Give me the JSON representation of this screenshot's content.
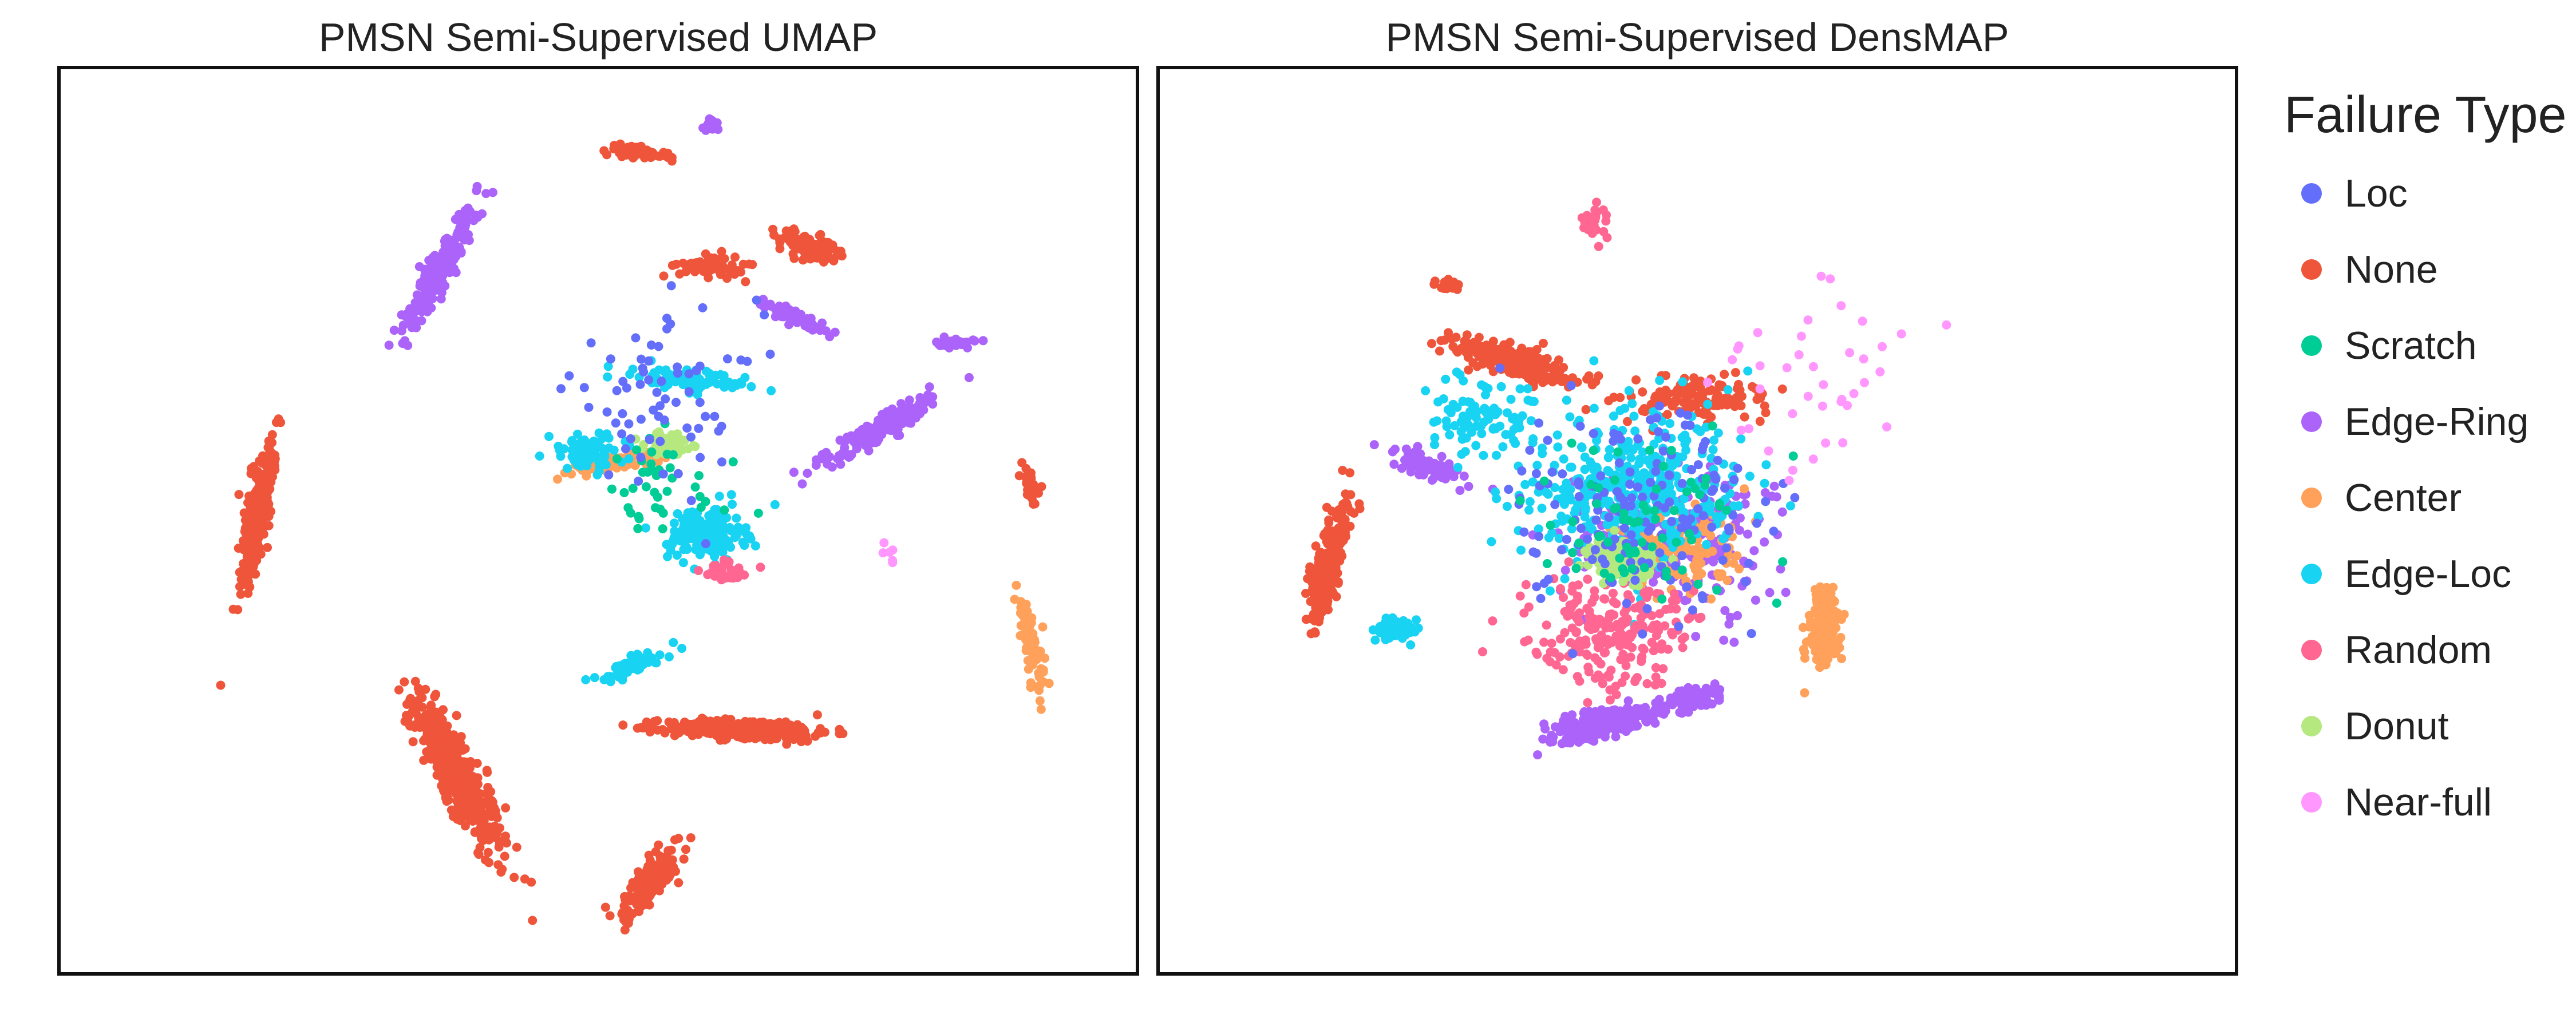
{
  "colors": {
    "Loc": "#636efa",
    "None": "#ef553b",
    "Scratch": "#00cc96",
    "Edge-Ring": "#ab63fa",
    "Center": "#ffa15a",
    "Edge-Loc": "#19d3f3",
    "Random": "#ff6692",
    "Donut": "#b6e880",
    "Near-full": "#ff97ff"
  },
  "legend": {
    "title": "Failure Type",
    "items": [
      "Loc",
      "None",
      "Scratch",
      "Edge-Ring",
      "Center",
      "Edge-Loc",
      "Random",
      "Donut",
      "Near-full"
    ]
  },
  "chart_data": [
    {
      "type": "scatter",
      "title": "PMSN Semi-Supervised UMAP",
      "xlabel": "",
      "ylabel": "",
      "xlim": [
        0,
        100
      ],
      "ylim": [
        0,
        100
      ],
      "grid": false,
      "legend_placement": "right",
      "clusters": [
        {
          "name": "None",
          "x": 18.5,
          "y": 50.5,
          "sx": 1.0,
          "sy": 9.0,
          "angle": -8,
          "n": 320
        },
        {
          "name": "None",
          "x": 37.0,
          "y": 22.0,
          "sx": 1.8,
          "sy": 9.0,
          "angle": 25,
          "n": 480
        },
        {
          "name": "None",
          "x": 64.0,
          "y": 27.0,
          "sx": 7.5,
          "sy": 1.1,
          "angle": -2,
          "n": 330
        },
        {
          "name": "None",
          "x": 55.0,
          "y": 10.5,
          "sx": 1.4,
          "sy": 4.5,
          "angle": -30,
          "n": 170
        },
        {
          "name": "None",
          "x": 53.5,
          "y": 90.5,
          "sx": 3.0,
          "sy": 0.6,
          "angle": -10,
          "n": 70
        },
        {
          "name": "None",
          "x": 69.5,
          "y": 80.0,
          "sx": 3.5,
          "sy": 1.4,
          "angle": -25,
          "n": 90
        },
        {
          "name": "None",
          "x": 60.5,
          "y": 78.0,
          "sx": 3.0,
          "sy": 1.2,
          "angle": 0,
          "n": 70
        },
        {
          "name": "None",
          "x": 90.0,
          "y": 53.5,
          "sx": 0.7,
          "sy": 2.5,
          "angle": 20,
          "n": 30
        },
        {
          "name": "Edge-Ring",
          "x": 35.5,
          "y": 78.0,
          "sx": 1.2,
          "sy": 7.5,
          "angle": -25,
          "n": 200
        },
        {
          "name": "Edge-Ring",
          "x": 76.0,
          "y": 60.0,
          "sx": 1.2,
          "sy": 7.0,
          "angle": -55,
          "n": 160
        },
        {
          "name": "Edge-Ring",
          "x": 83.0,
          "y": 69.5,
          "sx": 1.8,
          "sy": 0.5,
          "angle": 0,
          "n": 30
        },
        {
          "name": "Edge-Ring",
          "x": 60.5,
          "y": 93.5,
          "sx": 0.7,
          "sy": 0.8,
          "angle": 0,
          "n": 20
        },
        {
          "name": "Edge-Ring",
          "x": 68.0,
          "y": 72.5,
          "sx": 3.5,
          "sy": 0.7,
          "angle": -30,
          "n": 60
        },
        {
          "name": "Center",
          "x": 90.0,
          "y": 36.5,
          "sx": 1.0,
          "sy": 5.5,
          "angle": 10,
          "n": 90
        },
        {
          "name": "Center",
          "x": 52.0,
          "y": 56.5,
          "sx": 4.5,
          "sy": 0.8,
          "angle": 12,
          "n": 80
        },
        {
          "name": "Edge-Loc",
          "x": 60.0,
          "y": 48.5,
          "sx": 3.5,
          "sy": 3.0,
          "angle": 0,
          "n": 170
        },
        {
          "name": "Edge-Loc",
          "x": 53.0,
          "y": 34.0,
          "sx": 4.0,
          "sy": 1.0,
          "angle": 30,
          "n": 60
        },
        {
          "name": "Edge-Loc",
          "x": 58.5,
          "y": 65.5,
          "sx": 5.0,
          "sy": 1.2,
          "angle": -10,
          "n": 90
        },
        {
          "name": "Edge-Loc",
          "x": 49.0,
          "y": 57.5,
          "sx": 3.5,
          "sy": 2.0,
          "angle": 0,
          "n": 70
        },
        {
          "name": "Donut",
          "x": 56.5,
          "y": 58.5,
          "sx": 2.2,
          "sy": 1.2,
          "angle": 0,
          "n": 70
        },
        {
          "name": "Scratch",
          "x": 55.0,
          "y": 53.0,
          "sx": 8.0,
          "sy": 6.0,
          "angle": 0,
          "n": 40
        },
        {
          "name": "Random",
          "x": 62.0,
          "y": 44.5,
          "sx": 2.5,
          "sy": 1.5,
          "angle": 0,
          "n": 30
        },
        {
          "name": "Loc",
          "x": 56.0,
          "y": 63.0,
          "sx": 9.0,
          "sy": 10.0,
          "angle": 0,
          "n": 70
        },
        {
          "name": "Near-full",
          "x": 77.0,
          "y": 46.5,
          "sx": 1.0,
          "sy": 1.0,
          "angle": 0,
          "n": 6
        }
      ]
    },
    {
      "type": "scatter",
      "title": "PMSN Semi-Supervised DensMAP",
      "xlabel": "",
      "ylabel": "",
      "xlim": [
        0,
        100
      ],
      "ylim": [
        0,
        100
      ],
      "grid": false,
      "legend_placement": "right",
      "clusters": [
        {
          "name": "None",
          "x": 16.0,
          "y": 45.5,
          "sx": 1.4,
          "sy": 6.5,
          "angle": -12,
          "n": 250
        },
        {
          "name": "None",
          "x": 33.0,
          "y": 67.5,
          "sx": 6.0,
          "sy": 1.6,
          "angle": -20,
          "n": 220
        },
        {
          "name": "None",
          "x": 50.5,
          "y": 63.5,
          "sx": 6.5,
          "sy": 2.5,
          "angle": 0,
          "n": 140
        },
        {
          "name": "None",
          "x": 27.0,
          "y": 76.0,
          "sx": 1.2,
          "sy": 0.6,
          "angle": 0,
          "n": 20
        },
        {
          "name": "Edge-Ring",
          "x": 41.0,
          "y": 27.5,
          "sx": 5.0,
          "sy": 1.5,
          "angle": 15,
          "n": 220
        },
        {
          "name": "Edge-Ring",
          "x": 49.5,
          "y": 30.5,
          "sx": 3.0,
          "sy": 1.2,
          "angle": 12,
          "n": 90
        },
        {
          "name": "Edge-Ring",
          "x": 25.0,
          "y": 56.0,
          "sx": 3.5,
          "sy": 1.2,
          "angle": -25,
          "n": 80
        },
        {
          "name": "Edge-Ring",
          "x": 48.0,
          "y": 48.0,
          "sx": 9.0,
          "sy": 7.0,
          "angle": 0,
          "n": 220
        },
        {
          "name": "Center",
          "x": 61.5,
          "y": 38.5,
          "sx": 1.6,
          "sy": 5.0,
          "angle": 0,
          "n": 140
        },
        {
          "name": "Center",
          "x": 48.5,
          "y": 47.0,
          "sx": 5.5,
          "sy": 5.0,
          "angle": 0,
          "n": 130
        },
        {
          "name": "Edge-Loc",
          "x": 22.0,
          "y": 38.0,
          "sx": 1.8,
          "sy": 1.2,
          "angle": 0,
          "n": 90
        },
        {
          "name": "Edge-Loc",
          "x": 44.0,
          "y": 54.0,
          "sx": 10.0,
          "sy": 9.0,
          "angle": 0,
          "n": 380
        },
        {
          "name": "Edge-Loc",
          "x": 30.0,
          "y": 61.0,
          "sx": 5.0,
          "sy": 4.0,
          "angle": 0,
          "n": 90
        },
        {
          "name": "Random",
          "x": 42.0,
          "y": 38.0,
          "sx": 7.0,
          "sy": 6.0,
          "angle": 0,
          "n": 230
        },
        {
          "name": "Random",
          "x": 40.5,
          "y": 82.5,
          "sx": 1.2,
          "sy": 2.0,
          "angle": 0,
          "n": 25
        },
        {
          "name": "Donut",
          "x": 43.0,
          "y": 45.5,
          "sx": 3.0,
          "sy": 2.0,
          "angle": -10,
          "n": 180
        },
        {
          "name": "Loc",
          "x": 45.0,
          "y": 52.0,
          "sx": 12.0,
          "sy": 12.0,
          "angle": 0,
          "n": 160
        },
        {
          "name": "Scratch",
          "x": 45.0,
          "y": 50.0,
          "sx": 10.0,
          "sy": 9.0,
          "angle": 0,
          "n": 70
        },
        {
          "name": "Near-full",
          "x": 62.0,
          "y": 65.0,
          "sx": 12.0,
          "sy": 12.0,
          "angle": 0,
          "n": 40
        }
      ]
    }
  ]
}
